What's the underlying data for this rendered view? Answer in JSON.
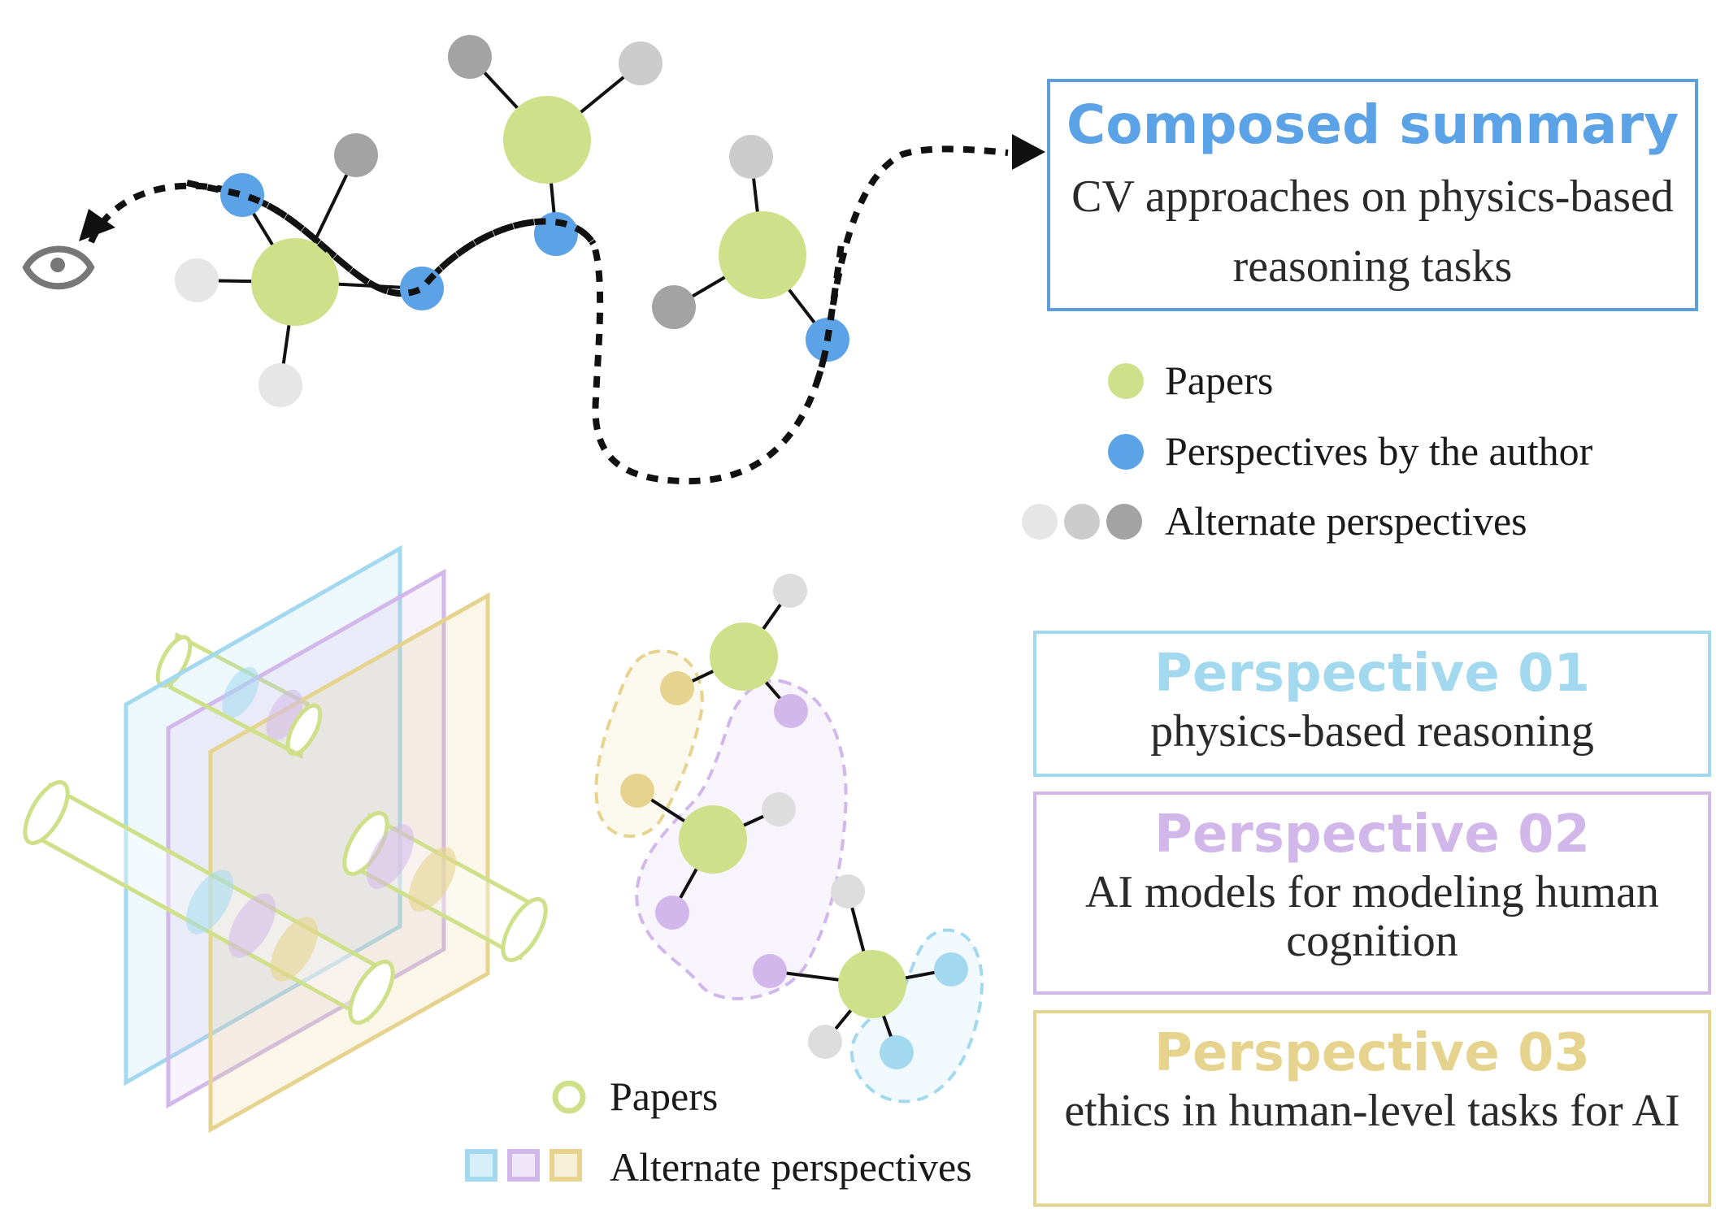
{
  "composed_summary": {
    "title": "Composed summary",
    "body": "CV approaches on physics-based reasoning tasks"
  },
  "legend_top": {
    "papers": "Papers",
    "author_perspectives": "Perspectives by the author",
    "alternate_perspectives": "Alternate perspectives"
  },
  "legend_bottom": {
    "papers": "Papers",
    "alternate_perspectives": "Alternate perspectives"
  },
  "perspectives": [
    {
      "title": "Perspective 01",
      "body": "physics-based reasoning"
    },
    {
      "title": "Perspective 02",
      "body": "AI models for modeling human cognition"
    },
    {
      "title": "Perspective 03",
      "body": "ethics in human-level tasks for AI"
    }
  ],
  "colors": {
    "paper": "#cfe08a",
    "author_perspective": "#5ba3e6",
    "alt_light": "#e6e6e6",
    "alt_mid": "#cccccc",
    "alt_dark": "#a3a3a3",
    "perspective_01": "#a3d9ee",
    "perspective_02": "#d2b8ea",
    "perspective_03": "#e6d48e"
  },
  "icons": {
    "viewer": "eye-icon"
  }
}
